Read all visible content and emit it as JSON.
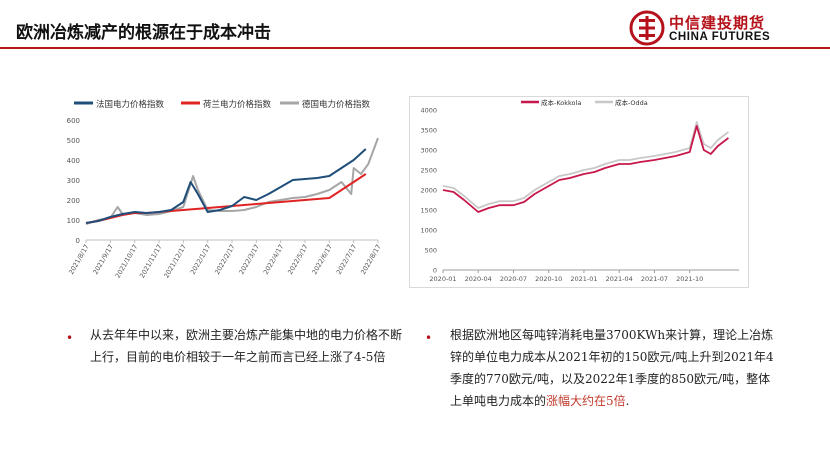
{
  "title": "欧洲冶炼减产的根源在于成本冲击",
  "brand": {
    "name_cn": "中信建投期货",
    "name_en": "CHINA FUTURES",
    "accent": "#b5121b"
  },
  "chart_data": [
    {
      "type": "line",
      "legend": [
        "法国电力价格指数",
        "荷兰电力价格指数",
        "德国电力价格指数"
      ],
      "colors": [
        "#1f4e79",
        "#e02424",
        "#a6a6a6"
      ],
      "ylim": [
        0,
        600
      ],
      "yticks": [
        0,
        100,
        200,
        300,
        400,
        500,
        600
      ],
      "categories": [
        "2021/8/17",
        "2021/9/17",
        "2021/10/17",
        "2021/11/17",
        "2021/12/17",
        "2022/1/17",
        "2022/2/17",
        "2022/3/17",
        "2022/4/17",
        "2022/5/17",
        "2022/6/17",
        "2022/7/17",
        "2022/8/17"
      ],
      "series": [
        {
          "name": "法国电力价格指数",
          "x": [
            0,
            0.5,
            1,
            1.5,
            2,
            2.5,
            3,
            3.5,
            4,
            4.3,
            4.6,
            5,
            5.5,
            6,
            6.5,
            7,
            7.5,
            8,
            8.5,
            9,
            9.5,
            10,
            10.5,
            11,
            11.5
          ],
          "values": [
            85,
            95,
            115,
            130,
            140,
            135,
            140,
            150,
            190,
            290,
            230,
            140,
            150,
            170,
            215,
            200,
            230,
            265,
            300,
            305,
            310,
            320,
            360,
            400,
            455
          ]
        },
        {
          "name": "荷兰电力价格指数",
          "x": [
            0,
            0.5,
            1,
            1.5,
            2,
            2.5,
            3,
            4,
            5,
            6,
            7,
            8,
            9,
            10,
            11,
            11.5
          ],
          "values": [
            85,
            95,
            110,
            125,
            135,
            135,
            140,
            150,
            160,
            170,
            180,
            190,
            200,
            210,
            290,
            330
          ]
        },
        {
          "name": "德国电力价格指数",
          "x": [
            0,
            0.5,
            1,
            1.3,
            1.5,
            2,
            2.5,
            3,
            3.5,
            4,
            4.4,
            4.6,
            5,
            5.5,
            6,
            6.5,
            7,
            7.5,
            8,
            8.5,
            9,
            9.5,
            10,
            10.5,
            10.9,
            11,
            11.3,
            11.6,
            12
          ],
          "values": [
            80,
            100,
            110,
            165,
            130,
            135,
            125,
            130,
            145,
            165,
            320,
            250,
            150,
            145,
            145,
            150,
            165,
            190,
            200,
            210,
            215,
            230,
            250,
            290,
            230,
            360,
            330,
            380,
            510
          ]
        }
      ]
    },
    {
      "type": "line",
      "legend": [
        "成本-Kokkola",
        "成本-Odda"
      ],
      "colors": [
        "#c8174a",
        "#c8c8c8"
      ],
      "ylim": [
        0,
        4000
      ],
      "yticks": [
        0,
        500,
        1000,
        1500,
        2000,
        2500,
        3000,
        3500,
        4000
      ],
      "xlabels": [
        "2020-01",
        "2020-04",
        "2020-07",
        "2020-10",
        "2021-01",
        "2021-04",
        "2021-07",
        "2021-10"
      ],
      "series": [
        {
          "name": "成本-Kokkola",
          "x": [
            0,
            0.3,
            0.6,
            1,
            1.3,
            1.6,
            2,
            2.3,
            2.6,
            3,
            3.3,
            3.6,
            4,
            4.3,
            4.6,
            5,
            5.3,
            5.6,
            6,
            6.3,
            6.6,
            7,
            7.2,
            7.4,
            7.6,
            7.8,
            8.1
          ],
          "values": [
            2000,
            1950,
            1750,
            1450,
            1550,
            1620,
            1620,
            1700,
            1900,
            2100,
            2250,
            2300,
            2400,
            2450,
            2550,
            2650,
            2650,
            2700,
            2750,
            2800,
            2850,
            2950,
            3600,
            3000,
            2900,
            3100,
            3300
          ]
        },
        {
          "name": "成本-Odda",
          "x": [
            0,
            0.3,
            0.6,
            1,
            1.3,
            1.6,
            2,
            2.3,
            2.6,
            3,
            3.3,
            3.6,
            4,
            4.3,
            4.6,
            5,
            5.3,
            5.6,
            6,
            6.3,
            6.6,
            7,
            7.2,
            7.4,
            7.6,
            7.8,
            8.1
          ],
          "values": [
            2100,
            2050,
            1850,
            1550,
            1650,
            1720,
            1720,
            1800,
            2000,
            2200,
            2350,
            2400,
            2500,
            2550,
            2650,
            2750,
            2750,
            2800,
            2850,
            2900,
            2950,
            3050,
            3700,
            3150,
            3050,
            3250,
            3450
          ]
        }
      ]
    }
  ],
  "bullets": [
    {
      "text": "从去年年中以来，欧洲主要冶炼产能集中地的电力价格不断上行，目前的电价相较于一年之前而言已经上涨了4-5倍"
    },
    {
      "text": "根据欧洲地区每吨锌消耗电量3700KWh来计算，理论上冶炼锌的单位电力成本从2021年初的150欧元/吨上升到2021年4季度的770欧元/吨，以及2022年1季度的850欧元/吨，整体上单吨电力成本的",
      "highlight": "涨幅大约在5倍",
      "tail": "."
    }
  ]
}
